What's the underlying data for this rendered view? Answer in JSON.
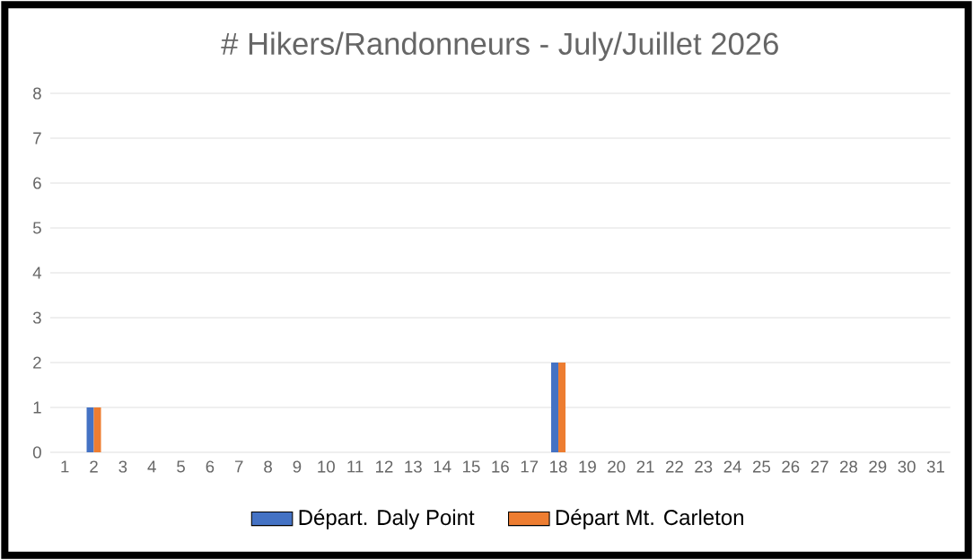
{
  "chart_data": {
    "type": "bar",
    "title": "# Hikers/Randonneurs - July/Juillet 2026",
    "categories": [
      "1",
      "2",
      "3",
      "4",
      "5",
      "6",
      "7",
      "8",
      "9",
      "10",
      "11",
      "12",
      "13",
      "14",
      "15",
      "16",
      "17",
      "18",
      "19",
      "20",
      "21",
      "22",
      "23",
      "24",
      "25",
      "26",
      "27",
      "28",
      "29",
      "30",
      "31"
    ],
    "series": [
      {
        "name": "Départ. Daly Point",
        "color": "#4472c4",
        "values": [
          0,
          1,
          0,
          0,
          0,
          0,
          0,
          0,
          0,
          0,
          0,
          0,
          0,
          0,
          0,
          0,
          0,
          2,
          0,
          0,
          0,
          0,
          0,
          0,
          0,
          0,
          0,
          0,
          0,
          0,
          0
        ]
      },
      {
        "name": "Départ Mt. Carleton",
        "color": "#ed7d31",
        "values": [
          0,
          1,
          0,
          0,
          0,
          0,
          0,
          0,
          0,
          0,
          0,
          0,
          0,
          0,
          0,
          0,
          0,
          2,
          0,
          0,
          0,
          0,
          0,
          0,
          0,
          0,
          0,
          0,
          0,
          0,
          0
        ]
      }
    ],
    "ylim": [
      0,
      8
    ],
    "yticks": [
      0,
      1,
      2,
      3,
      4,
      5,
      6,
      7,
      8
    ],
    "grid": "y",
    "legend": "bottom"
  }
}
